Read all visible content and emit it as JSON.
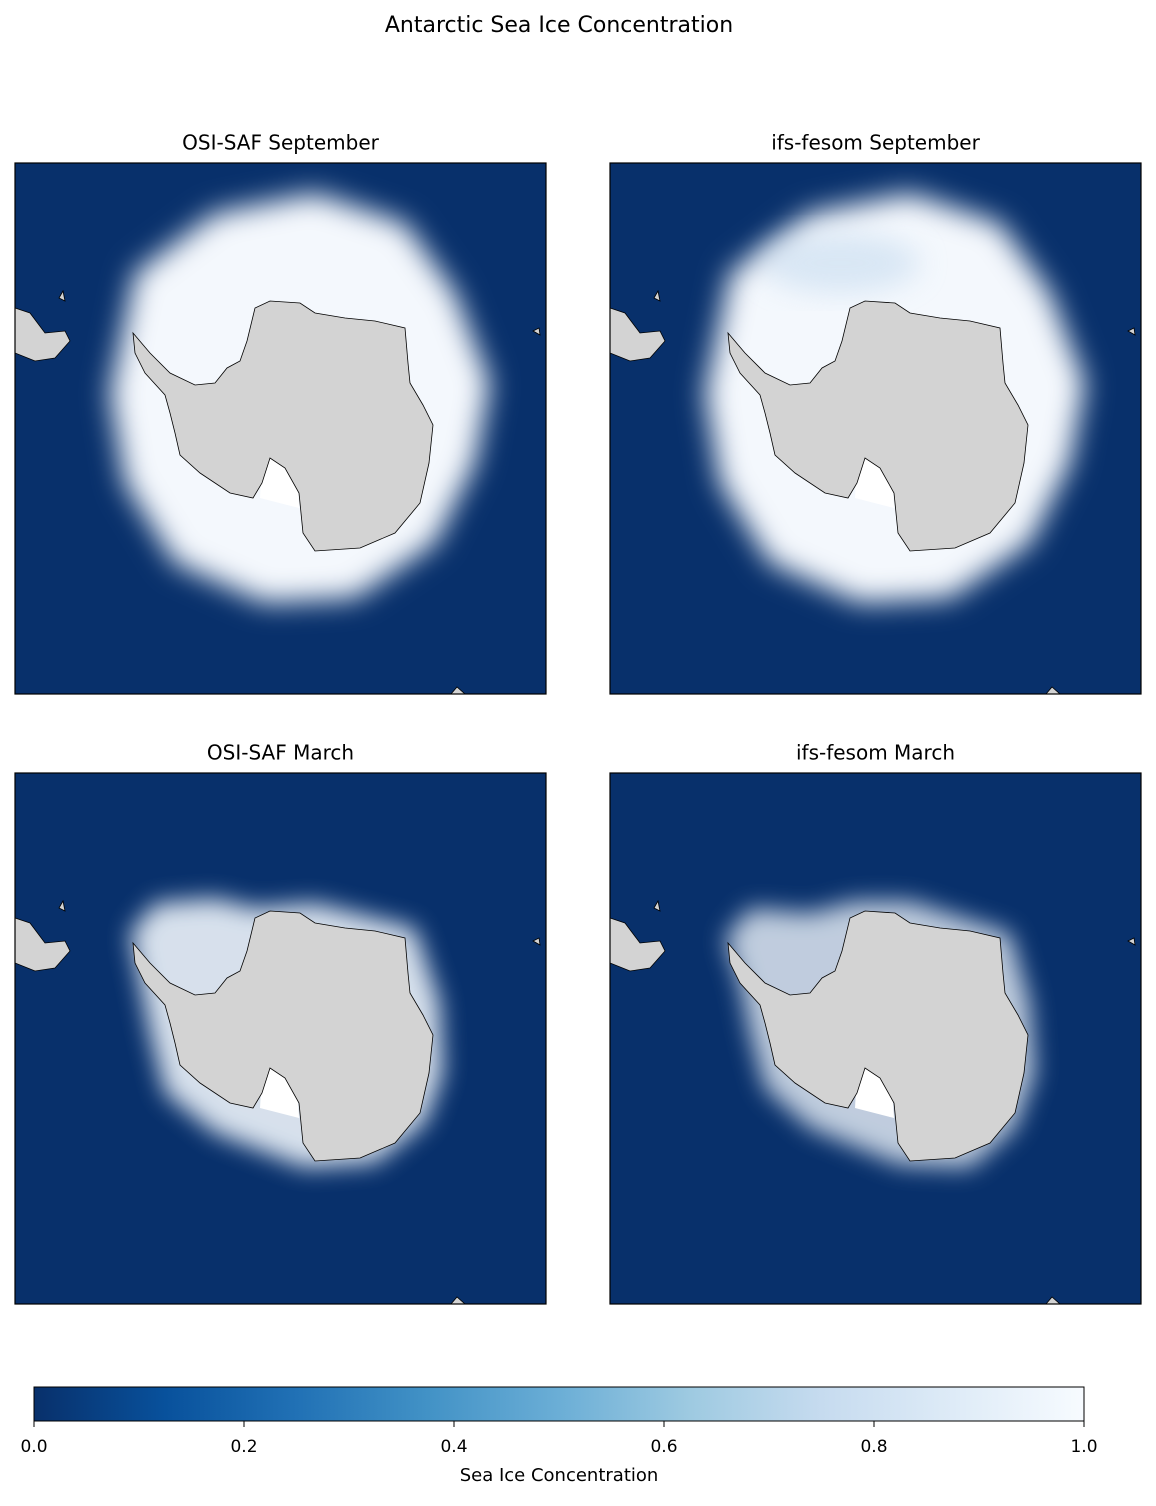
{
  "title": "Antarctic Sea Ice Concentration",
  "panels": [
    {
      "title": "OSI-SAF September"
    },
    {
      "title": "ifs-fesom September"
    },
    {
      "title": "OSI-SAF March"
    },
    {
      "title": "ifs-fesom March"
    }
  ],
  "colorbar": {
    "label": "Sea Ice Concentration",
    "lim": [
      0,
      1
    ],
    "ticks": [
      {
        "value": 0,
        "label": "0.0"
      },
      0.2,
      0.4,
      0.6,
      0.8,
      {
        "value": 1,
        "label": "1.0"
      }
    ],
    "colormap": [
      "#08306b",
      "#08519c",
      "#2171b5",
      "#4292c6",
      "#6baed6",
      "#9ecae1",
      "#c6dbef",
      "#deebf7",
      "#f7fbff"
    ]
  }
}
